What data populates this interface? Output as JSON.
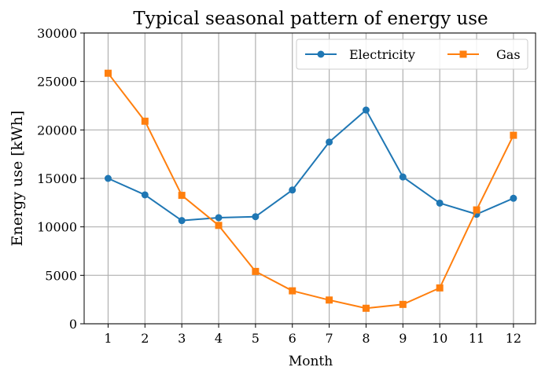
{
  "chart_data": {
    "type": "line",
    "title": "Typical seasonal pattern of energy use",
    "xlabel": "Month",
    "ylabel": "Energy use [kWh]",
    "x": [
      1,
      2,
      3,
      4,
      5,
      6,
      7,
      8,
      9,
      10,
      11,
      12
    ],
    "xlim": [
      0.35,
      12.6
    ],
    "ylim": [
      0,
      30000
    ],
    "yticks": [
      0,
      5000,
      10000,
      15000,
      20000,
      25000,
      30000
    ],
    "grid": true,
    "legend": "top-right",
    "series": [
      {
        "name": "Electricity",
        "color": "#1f77b4",
        "marker": "circle",
        "values": [
          15000,
          13300,
          10650,
          10950,
          11050,
          13800,
          18750,
          22050,
          15150,
          12450,
          11300,
          12950
        ]
      },
      {
        "name": "Gas",
        "color": "#ff7f0e",
        "marker": "square",
        "values": [
          25850,
          20900,
          13250,
          10150,
          5400,
          3400,
          2450,
          1600,
          2000,
          3700,
          11750,
          19450
        ]
      }
    ]
  }
}
